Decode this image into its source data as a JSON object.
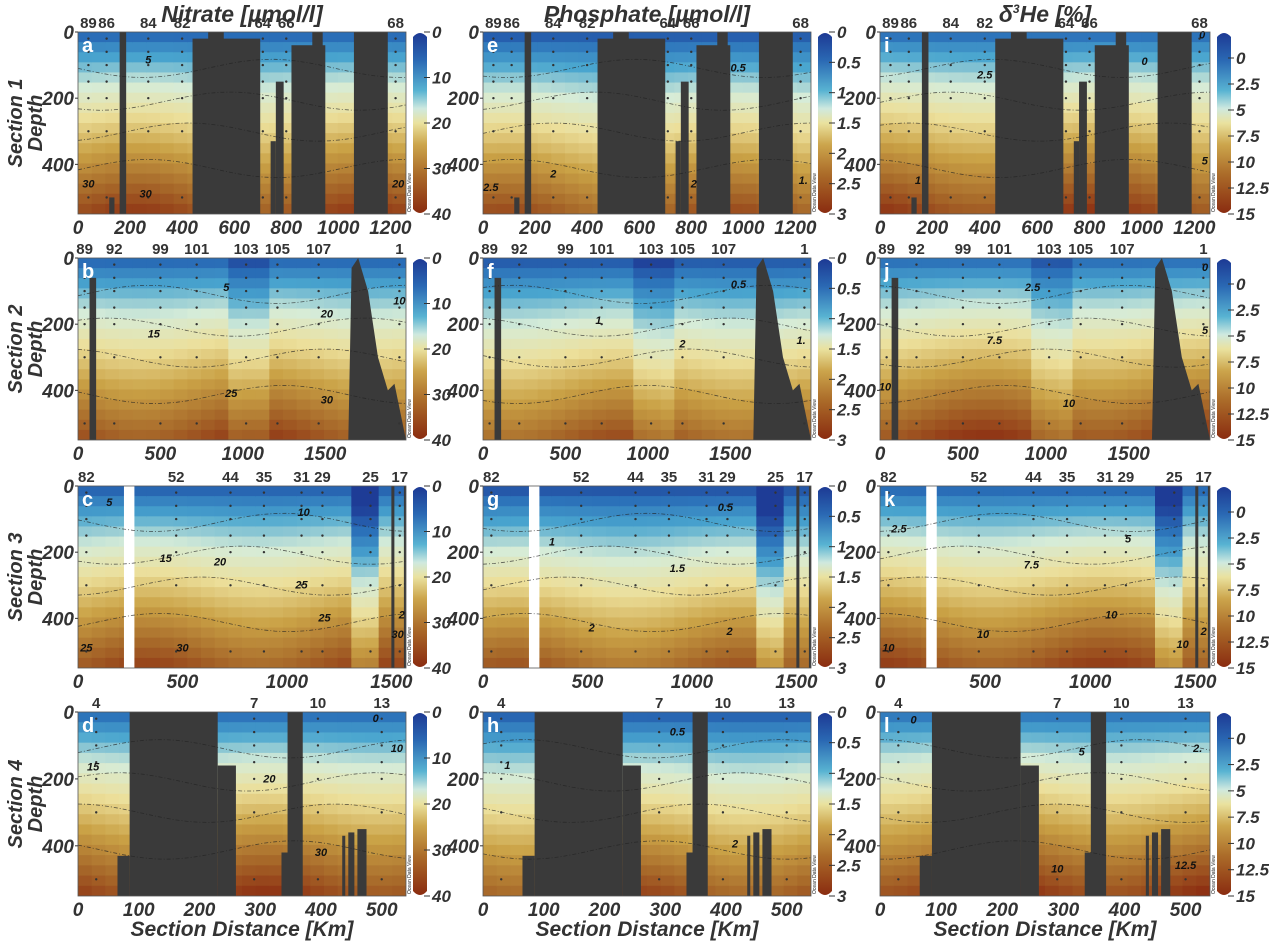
{
  "chart_data": {
    "type": "heatmap",
    "description": "Ocean section contour plots (12 panels: 4 sections x 3 variables)",
    "ylabel": "Depth",
    "xlabel": "Section Distance [Km]",
    "columns": [
      {
        "title": "Nitrate [µmol/l]",
        "colorbar": {
          "range": [
            0,
            40
          ],
          "ticks": [
            "0",
            "10",
            "20",
            "30",
            "40"
          ]
        }
      },
      {
        "title": "Phosphate [µmol/l]",
        "colorbar": {
          "range": [
            0,
            3
          ],
          "ticks": [
            "0",
            "0.5",
            "1",
            "1.5",
            "2",
            "2.5",
            "3"
          ]
        }
      },
      {
        "title_prefix": "δ",
        "title_sup": "3",
        "title_suffix": "He [%]",
        "title": "δ3He [%]",
        "colorbar": {
          "range": [
            -2.5,
            15
          ],
          "ticks": [
            "0",
            "2.5",
            "5",
            "7.5",
            "10",
            "12.5",
            "15"
          ]
        }
      }
    ],
    "rows": [
      {
        "label": "Section 1",
        "ylabel": "Depth",
        "xlim": [
          0,
          1260
        ],
        "xticks": [
          "0",
          "200",
          "400",
          "600",
          "800",
          "1000",
          "1200"
        ],
        "yticks": [
          "0",
          "200",
          "400"
        ],
        "ylim": [
          0,
          550
        ],
        "stations": [
          {
            "label": "89",
            "x": 40
          },
          {
            "label": "86",
            "x": 110
          },
          {
            "label": "84",
            "x": 270
          },
          {
            "label": "82",
            "x": 400
          },
          {
            "label": "64",
            "x": 710
          },
          {
            "label": "66",
            "x": 800
          },
          {
            "label": "68",
            "x": 1220
          }
        ]
      },
      {
        "label": "Section 2",
        "ylabel": "Depth",
        "xlim": [
          0,
          1990
        ],
        "xticks": [
          "0",
          "500",
          "1000",
          "1500"
        ],
        "yticks": [
          "0",
          "200",
          "400"
        ],
        "ylim": [
          0,
          550
        ],
        "stations": [
          {
            "label": "89",
            "x": 40
          },
          {
            "label": "92",
            "x": 220
          },
          {
            "label": "99",
            "x": 500
          },
          {
            "label": "101",
            "x": 720
          },
          {
            "label": "103",
            "x": 1020
          },
          {
            "label": "105",
            "x": 1210
          },
          {
            "label": "107",
            "x": 1460
          },
          {
            "label": "1",
            "x": 1950
          }
        ]
      },
      {
        "label": "Section 3",
        "ylabel": "Depth",
        "xlim": [
          0,
          1570
        ],
        "xticks": [
          "0",
          "500",
          "1000",
          "1500"
        ],
        "yticks": [
          "0",
          "200",
          "400"
        ],
        "ylim": [
          0,
          550
        ],
        "stations": [
          {
            "label": "82",
            "x": 40
          },
          {
            "label": "52",
            "x": 470
          },
          {
            "label": "44",
            "x": 730
          },
          {
            "label": "35",
            "x": 890
          },
          {
            "label": "31",
            "x": 1070
          },
          {
            "label": "29",
            "x": 1170
          },
          {
            "label": "25",
            "x": 1400
          },
          {
            "label": "17",
            "x": 1540
          }
        ]
      },
      {
        "label": "Section 4",
        "ylabel": "Depth",
        "xlim": [
          0,
          540
        ],
        "xticks": [
          "0",
          "100",
          "200",
          "300",
          "400",
          "500"
        ],
        "yticks": [
          "0",
          "200",
          "400"
        ],
        "ylim": [
          0,
          550
        ],
        "stations": [
          {
            "label": "4",
            "x": 30
          },
          {
            "label": "7",
            "x": 290
          },
          {
            "label": "10",
            "x": 395
          },
          {
            "label": "13",
            "x": 500
          }
        ]
      }
    ],
    "panels": [
      {
        "id": "a",
        "row": 0,
        "col": 0,
        "contours": [
          {
            "label": "5",
            "x": 270,
            "y": 95
          },
          {
            "label": "30",
            "x": 40,
            "y": 470
          },
          {
            "label": "30",
            "x": 260,
            "y": 500
          },
          {
            "label": "20",
            "x": 1230,
            "y": 470
          }
        ]
      },
      {
        "id": "e",
        "row": 0,
        "col": 1,
        "contours": [
          {
            "label": "0.5",
            "x": 980,
            "y": 120
          },
          {
            "label": "2.5",
            "x": 30,
            "y": 480
          },
          {
            "label": "2",
            "x": 270,
            "y": 440
          },
          {
            "label": "2",
            "x": 810,
            "y": 470
          },
          {
            "label": "1.",
            "x": 1230,
            "y": 460
          }
        ]
      },
      {
        "id": "i",
        "row": 0,
        "col": 2,
        "contours": [
          {
            "label": "0",
            "x": 1230,
            "y": 20
          },
          {
            "label": "0",
            "x": 1010,
            "y": 100
          },
          {
            "label": "2.5",
            "x": 400,
            "y": 140
          },
          {
            "label": "1",
            "x": 145,
            "y": 460
          },
          {
            "label": "5",
            "x": 1240,
            "y": 400
          }
        ]
      },
      {
        "id": "b",
        "row": 1,
        "col": 0,
        "contours": [
          {
            "label": "5",
            "x": 900,
            "y": 100
          },
          {
            "label": "10",
            "x": 1950,
            "y": 140
          },
          {
            "label": "20",
            "x": 1510,
            "y": 180
          },
          {
            "label": "15",
            "x": 460,
            "y": 240
          },
          {
            "label": "25",
            "x": 930,
            "y": 420
          },
          {
            "label": "30",
            "x": 1510,
            "y": 440
          }
        ]
      },
      {
        "id": "f",
        "row": 1,
        "col": 1,
        "contours": [
          {
            "label": "0.5",
            "x": 1550,
            "y": 90
          },
          {
            "label": "1",
            "x": 700,
            "y": 200
          },
          {
            "label": "2",
            "x": 1210,
            "y": 270
          },
          {
            "label": "1.",
            "x": 1930,
            "y": 260
          }
        ]
      },
      {
        "id": "j",
        "row": 1,
        "col": 2,
        "contours": [
          {
            "label": "2.5",
            "x": 920,
            "y": 100
          },
          {
            "label": "7.5",
            "x": 690,
            "y": 260
          },
          {
            "label": "10",
            "x": 1140,
            "y": 450
          },
          {
            "label": "10",
            "x": 30,
            "y": 400
          },
          {
            "label": "5",
            "x": 1960,
            "y": 230
          },
          {
            "label": "0",
            "x": 1960,
            "y": 40
          }
        ]
      },
      {
        "id": "c",
        "row": 2,
        "col": 0,
        "contours": [
          {
            "label": "5",
            "x": 150,
            "y": 60
          },
          {
            "label": "10",
            "x": 1080,
            "y": 90
          },
          {
            "label": "15",
            "x": 420,
            "y": 230
          },
          {
            "label": "20",
            "x": 680,
            "y": 240
          },
          {
            "label": "25",
            "x": 1070,
            "y": 310
          },
          {
            "label": "25",
            "x": 1180,
            "y": 410
          },
          {
            "label": "25",
            "x": 40,
            "y": 500
          },
          {
            "label": "30",
            "x": 500,
            "y": 500
          },
          {
            "label": "30",
            "x": 1530,
            "y": 460
          },
          {
            "label": "2",
            "x": 1550,
            "y": 400
          }
        ]
      },
      {
        "id": "g",
        "row": 2,
        "col": 1,
        "contours": [
          {
            "label": "0.5",
            "x": 1160,
            "y": 75
          },
          {
            "label": "1",
            "x": 330,
            "y": 180
          },
          {
            "label": "1.5",
            "x": 930,
            "y": 260
          },
          {
            "label": "2",
            "x": 520,
            "y": 440
          },
          {
            "label": "2",
            "x": 1180,
            "y": 450
          }
        ]
      },
      {
        "id": "k",
        "row": 2,
        "col": 2,
        "contours": [
          {
            "label": "2.5",
            "x": 90,
            "y": 140
          },
          {
            "label": "5",
            "x": 1180,
            "y": 170
          },
          {
            "label": "7.5",
            "x": 720,
            "y": 250
          },
          {
            "label": "10",
            "x": 1100,
            "y": 400
          },
          {
            "label": "10",
            "x": 490,
            "y": 460
          },
          {
            "label": "10",
            "x": 40,
            "y": 500
          },
          {
            "label": "10",
            "x": 1440,
            "y": 490
          },
          {
            "label": "2",
            "x": 1540,
            "y": 450
          }
        ]
      },
      {
        "id": "d",
        "row": 3,
        "col": 0,
        "contours": [
          {
            "label": "0",
            "x": 490,
            "y": 30
          },
          {
            "label": "10",
            "x": 525,
            "y": 120
          },
          {
            "label": "15",
            "x": 25,
            "y": 175
          },
          {
            "label": "20",
            "x": 315,
            "y": 210
          },
          {
            "label": "30",
            "x": 400,
            "y": 430
          }
        ]
      },
      {
        "id": "h",
        "row": 3,
        "col": 1,
        "contours": [
          {
            "label": "0.5",
            "x": 320,
            "y": 70
          },
          {
            "label": "1",
            "x": 40,
            "y": 170
          },
          {
            "label": "2",
            "x": 415,
            "y": 405
          }
        ]
      },
      {
        "id": "l",
        "row": 3,
        "col": 2,
        "contours": [
          {
            "label": "0",
            "x": 55,
            "y": 35
          },
          {
            "label": "5",
            "x": 330,
            "y": 130
          },
          {
            "label": "2.",
            "x": 520,
            "y": 120
          },
          {
            "label": "10",
            "x": 290,
            "y": 480
          },
          {
            "label": "12.5",
            "x": 500,
            "y": 470
          }
        ]
      }
    ],
    "colormap": [
      "#1e3c96",
      "#2a6fb8",
      "#4aa6cf",
      "#d6ecd8",
      "#ecdf9a",
      "#caa246",
      "#a86a2a",
      "#8c2e12"
    ],
    "watermark": "Ocean Data View"
  }
}
